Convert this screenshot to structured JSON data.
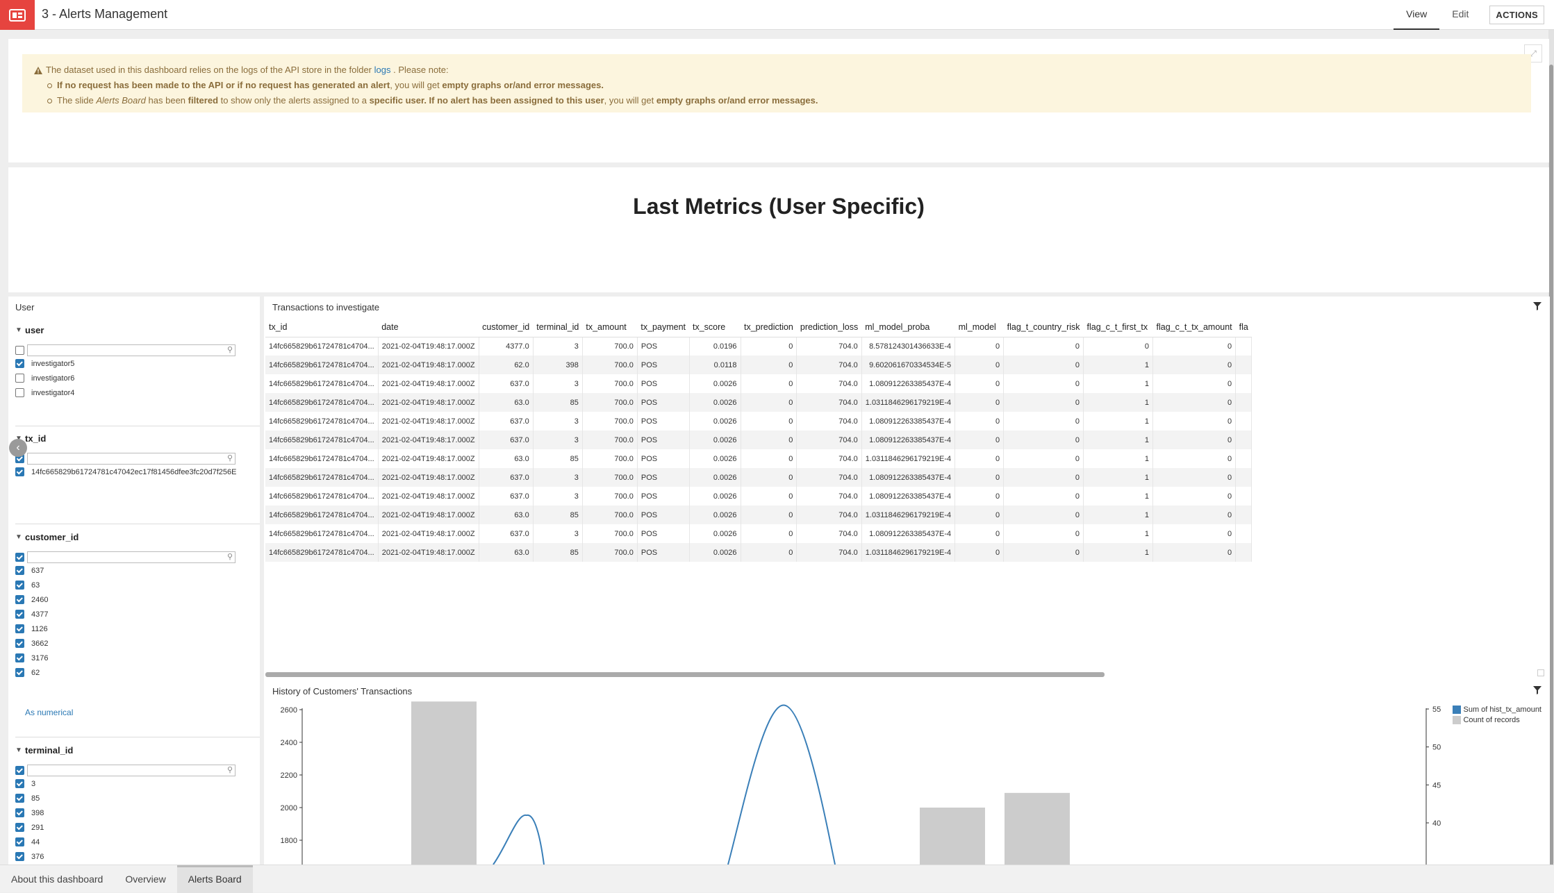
{
  "app": {
    "title": "3 - Alerts Management"
  },
  "nav": {
    "view": "View",
    "edit": "Edit",
    "actions": "ACTIONS"
  },
  "notice": {
    "text_before_link": "The dataset used in this dashboard relies on the logs of the API store in the folder",
    "link": "logs",
    "text_after_link": ". Please note:",
    "bullet1_bold": "If no request has been made to the API or if no request has generated an alert",
    "bullet1_normal": ", you will get",
    "bullet1_bold2": "empty graphs or/and error messages.",
    "bullet2_a": "The slide",
    "bullet2_italic": "Alerts Board",
    "bullet2_b": "has been",
    "bullet2_bold_filtered": "filtered",
    "bullet2_c": "to show only the alerts assigned to a",
    "bullet2_bold_user": "specific user. If no alert has been assigned to this user",
    "bullet2_d": ", you will get",
    "bullet2_bold_end": "empty graphs or/and error messages."
  },
  "metrics": {
    "title": "Last Metrics (User Specific)"
  },
  "filters": {
    "title": "User",
    "user": {
      "label": "user",
      "items": [
        {
          "label": "investigator5",
          "checked": true
        },
        {
          "label": "investigator6",
          "checked": false
        },
        {
          "label": "investigator4",
          "checked": false
        }
      ]
    },
    "tx_id": {
      "label": "tx_id",
      "items": [
        {
          "label": "14fc665829b61724781c47042ec17f81456dfee3fc20d7f256E",
          "checked": true
        }
      ]
    },
    "customer_id": {
      "label": "customer_id",
      "items": [
        {
          "label": "637"
        },
        {
          "label": "63"
        },
        {
          "label": "2460"
        },
        {
          "label": "4377"
        },
        {
          "label": "1126"
        },
        {
          "label": "3662"
        },
        {
          "label": "3176"
        },
        {
          "label": "62"
        }
      ],
      "as_numerical": "As numerical"
    },
    "terminal_id": {
      "label": "terminal_id",
      "items": [
        {
          "label": "3"
        },
        {
          "label": "85"
        },
        {
          "label": "398"
        },
        {
          "label": "291"
        },
        {
          "label": "44"
        },
        {
          "label": "376"
        }
      ]
    }
  },
  "table": {
    "title": "Transactions to investigate",
    "columns": [
      "tx_id",
      "date",
      "customer_id",
      "terminal_id",
      "tx_amount",
      "tx_payment",
      "tx_score",
      "tx_prediction",
      "prediction_loss",
      "ml_model_proba",
      "ml_model",
      "flag_t_country_risk",
      "flag_c_t_first_tx",
      "flag_c_t_tx_amount",
      "fla"
    ],
    "rows": [
      [
        "14fc665829b61724781c4704...",
        "2021-02-04T19:48:17.000Z",
        "4377.0",
        "3",
        "700.0",
        "POS",
        "0.0196",
        "0",
        "704.0",
        "8.578124301436633E-4",
        "0",
        "0",
        "0",
        "0",
        ""
      ],
      [
        "14fc665829b61724781c4704...",
        "2021-02-04T19:48:17.000Z",
        "62.0",
        "398",
        "700.0",
        "POS",
        "0.0118",
        "0",
        "704.0",
        "9.602061670334534E-5",
        "0",
        "0",
        "1",
        "0",
        ""
      ],
      [
        "14fc665829b61724781c4704...",
        "2021-02-04T19:48:17.000Z",
        "637.0",
        "3",
        "700.0",
        "POS",
        "0.0026",
        "0",
        "704.0",
        "1.080912263385437E-4",
        "0",
        "0",
        "1",
        "0",
        ""
      ],
      [
        "14fc665829b61724781c4704...",
        "2021-02-04T19:48:17.000Z",
        "63.0",
        "85",
        "700.0",
        "POS",
        "0.0026",
        "0",
        "704.0",
        "1.0311846296179219E-4",
        "0",
        "0",
        "1",
        "0",
        ""
      ],
      [
        "14fc665829b61724781c4704...",
        "2021-02-04T19:48:17.000Z",
        "637.0",
        "3",
        "700.0",
        "POS",
        "0.0026",
        "0",
        "704.0",
        "1.080912263385437E-4",
        "0",
        "0",
        "1",
        "0",
        ""
      ],
      [
        "14fc665829b61724781c4704...",
        "2021-02-04T19:48:17.000Z",
        "637.0",
        "3",
        "700.0",
        "POS",
        "0.0026",
        "0",
        "704.0",
        "1.080912263385437E-4",
        "0",
        "0",
        "1",
        "0",
        ""
      ],
      [
        "14fc665829b61724781c4704...",
        "2021-02-04T19:48:17.000Z",
        "63.0",
        "85",
        "700.0",
        "POS",
        "0.0026",
        "0",
        "704.0",
        "1.0311846296179219E-4",
        "0",
        "0",
        "1",
        "0",
        ""
      ],
      [
        "14fc665829b61724781c4704...",
        "2021-02-04T19:48:17.000Z",
        "637.0",
        "3",
        "700.0",
        "POS",
        "0.0026",
        "0",
        "704.0",
        "1.080912263385437E-4",
        "0",
        "0",
        "1",
        "0",
        ""
      ],
      [
        "14fc665829b61724781c4704...",
        "2021-02-04T19:48:17.000Z",
        "637.0",
        "3",
        "700.0",
        "POS",
        "0.0026",
        "0",
        "704.0",
        "1.080912263385437E-4",
        "0",
        "0",
        "1",
        "0",
        ""
      ],
      [
        "14fc665829b61724781c4704...",
        "2021-02-04T19:48:17.000Z",
        "63.0",
        "85",
        "700.0",
        "POS",
        "0.0026",
        "0",
        "704.0",
        "1.0311846296179219E-4",
        "0",
        "0",
        "1",
        "0",
        ""
      ],
      [
        "14fc665829b61724781c4704...",
        "2021-02-04T19:48:17.000Z",
        "637.0",
        "3",
        "700.0",
        "POS",
        "0.0026",
        "0",
        "704.0",
        "1.080912263385437E-4",
        "0",
        "0",
        "1",
        "0",
        ""
      ],
      [
        "14fc665829b61724781c4704...",
        "2021-02-04T19:48:17.000Z",
        "63.0",
        "85",
        "700.0",
        "POS",
        "0.0026",
        "0",
        "704.0",
        "1.0311846296179219E-4",
        "0",
        "0",
        "1",
        "0",
        ""
      ]
    ]
  },
  "chart": {
    "title": "History of Customers' Transactions",
    "legend": [
      {
        "label": "Sum of hist_tx_amount",
        "color": "#3a7fb8"
      },
      {
        "label": "Count of records",
        "color": "#cccccc"
      }
    ]
  },
  "chart_data": {
    "type": "bar",
    "left_axis": {
      "ticks": [
        1800,
        2000,
        2200,
        2400,
        2600
      ],
      "ylim": [
        1760,
        2670
      ]
    },
    "right_axis": {
      "ticks": [
        40,
        45,
        50,
        55
      ],
      "ylim": [
        39.5,
        55.5
      ]
    },
    "series": [
      {
        "name": "Count of records",
        "kind": "bar",
        "axis": "left",
        "values": [
          2650,
          2000,
          2090
        ]
      },
      {
        "name": "Sum of hist_tx_amount",
        "kind": "line",
        "axis": "right",
        "peaks": [
          41,
          55.5
        ]
      }
    ]
  },
  "bottom_tabs": [
    "About this dashboard",
    "Overview",
    "Alerts Board"
  ]
}
